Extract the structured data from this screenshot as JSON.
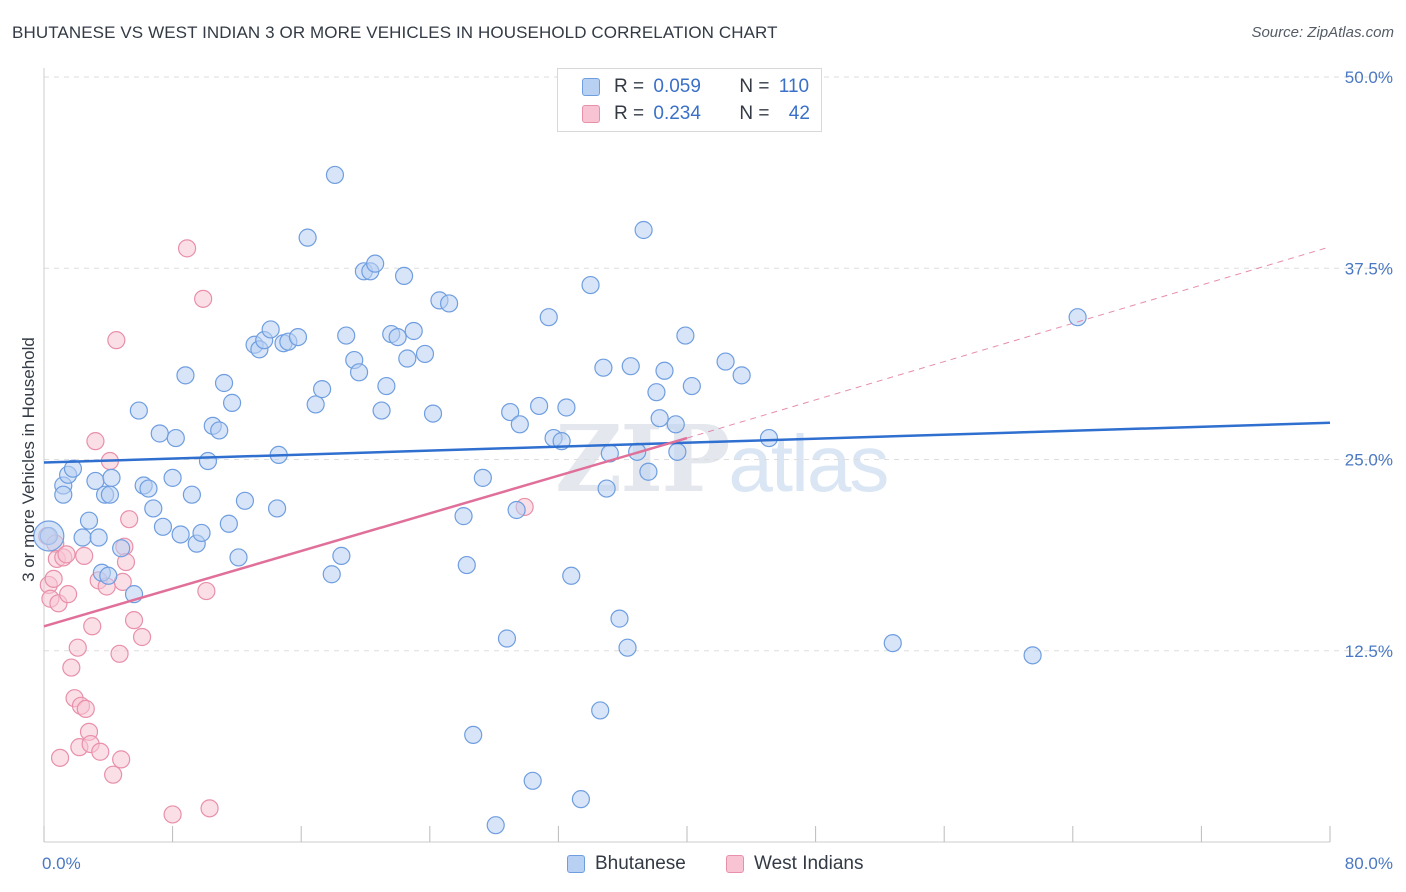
{
  "title": "BHUTANESE VS WEST INDIAN 3 OR MORE VEHICLES IN HOUSEHOLD CORRELATION CHART",
  "source": "Source: ZipAtlas.com",
  "watermark": {
    "zip": "ZIP",
    "atlas": "atlas"
  },
  "colors": {
    "blue_fill": "#b8d0f2",
    "blue_stroke": "#6f9ee0",
    "blue_line": "#2f6fcf",
    "pink_fill": "#f8c4d4",
    "pink_stroke": "#e890aa",
    "pink_line": "#e0709a",
    "tick": "#4a78c2",
    "grid": "#dddddd"
  },
  "legend": {
    "rows": [
      {
        "r_label": "R =",
        "r_value": "0.059",
        "n_label": "N =",
        "n_value": "110",
        "color": "#b8d0f2"
      },
      {
        "r_label": "R =",
        "r_value": "0.234",
        "n_label": "N =",
        "n_value": "42",
        "color": "#f8c4d4"
      }
    ]
  },
  "chart_data": {
    "type": "scatter",
    "title": "BHUTANESE VS WEST INDIAN 3 OR MORE VEHICLES IN HOUSEHOLD CORRELATION CHART",
    "xlabel": "",
    "ylabel": "3 or more Vehicles in Household",
    "xlim": [
      0,
      80
    ],
    "ylim": [
      0,
      50
    ],
    "x_tick_labels": [
      "0.0%",
      "80.0%"
    ],
    "y_ticks": [
      12.5,
      25.0,
      37.5,
      50.0
    ],
    "y_tick_labels": [
      "12.5%",
      "25.0%",
      "37.5%",
      "50.0%"
    ],
    "grid": true,
    "legend_position": "bottom",
    "series": [
      {
        "name": "Bhutanese",
        "color": "#b8d0f2",
        "trend": {
          "x": [
            0,
            80
          ],
          "y": [
            24.8,
            27.4
          ]
        },
        "points": [
          [
            0.3,
            20.0
          ],
          [
            1.2,
            23.3
          ],
          [
            1.2,
            22.7
          ],
          [
            1.5,
            24.0
          ],
          [
            1.8,
            24.4
          ],
          [
            2.4,
            19.9
          ],
          [
            2.8,
            21.0
          ],
          [
            3.2,
            23.6
          ],
          [
            3.4,
            19.9
          ],
          [
            3.6,
            17.6
          ],
          [
            3.8,
            22.7
          ],
          [
            4.0,
            17.4
          ],
          [
            4.1,
            22.7
          ],
          [
            4.2,
            23.8
          ],
          [
            4.8,
            19.2
          ],
          [
            5.6,
            16.2
          ],
          [
            5.9,
            28.2
          ],
          [
            6.2,
            23.3
          ],
          [
            6.5,
            23.1
          ],
          [
            6.8,
            21.8
          ],
          [
            7.2,
            26.7
          ],
          [
            7.4,
            20.6
          ],
          [
            8.0,
            23.8
          ],
          [
            8.2,
            26.4
          ],
          [
            8.5,
            20.1
          ],
          [
            8.8,
            30.5
          ],
          [
            9.2,
            22.7
          ],
          [
            9.5,
            19.5
          ],
          [
            9.8,
            20.2
          ],
          [
            10.2,
            24.9
          ],
          [
            10.5,
            27.2
          ],
          [
            10.9,
            26.9
          ],
          [
            11.2,
            30.0
          ],
          [
            11.5,
            20.8
          ],
          [
            11.7,
            28.7
          ],
          [
            12.1,
            18.6
          ],
          [
            12.5,
            22.3
          ],
          [
            13.1,
            32.5
          ],
          [
            13.4,
            32.2
          ],
          [
            13.7,
            32.8
          ],
          [
            14.1,
            33.5
          ],
          [
            14.5,
            21.8
          ],
          [
            14.6,
            25.3
          ],
          [
            14.9,
            32.6
          ],
          [
            15.2,
            32.7
          ],
          [
            15.8,
            33.0
          ],
          [
            16.4,
            39.5
          ],
          [
            16.9,
            28.6
          ],
          [
            17.3,
            29.6
          ],
          [
            17.9,
            17.5
          ],
          [
            18.1,
            43.6
          ],
          [
            18.5,
            18.7
          ],
          [
            18.8,
            33.1
          ],
          [
            19.3,
            31.5
          ],
          [
            19.6,
            30.7
          ],
          [
            19.9,
            37.3
          ],
          [
            20.3,
            37.3
          ],
          [
            20.6,
            37.8
          ],
          [
            21.0,
            28.2
          ],
          [
            21.3,
            29.8
          ],
          [
            21.6,
            33.2
          ],
          [
            22.0,
            33.0
          ],
          [
            22.4,
            37.0
          ],
          [
            22.6,
            31.6
          ],
          [
            23.0,
            33.4
          ],
          [
            23.7,
            31.9
          ],
          [
            24.2,
            28.0
          ],
          [
            24.6,
            35.4
          ],
          [
            25.2,
            35.2
          ],
          [
            26.1,
            21.3
          ],
          [
            26.3,
            18.1
          ],
          [
            26.7,
            7.0
          ],
          [
            27.3,
            23.8
          ],
          [
            28.1,
            1.1
          ],
          [
            28.8,
            13.3
          ],
          [
            29.0,
            28.1
          ],
          [
            29.4,
            21.7
          ],
          [
            29.6,
            27.3
          ],
          [
            30.4,
            4.0
          ],
          [
            30.8,
            28.5
          ],
          [
            31.4,
            34.3
          ],
          [
            31.7,
            26.4
          ],
          [
            32.2,
            26.2
          ],
          [
            32.5,
            28.4
          ],
          [
            32.8,
            17.4
          ],
          [
            33.4,
            2.8
          ],
          [
            34.0,
            36.4
          ],
          [
            34.6,
            8.6
          ],
          [
            34.8,
            31.0
          ],
          [
            35.0,
            23.1
          ],
          [
            35.2,
            25.4
          ],
          [
            35.8,
            14.6
          ],
          [
            36.3,
            12.7
          ],
          [
            36.5,
            31.1
          ],
          [
            36.9,
            25.5
          ],
          [
            37.3,
            40.0
          ],
          [
            37.6,
            24.2
          ],
          [
            38.1,
            29.4
          ],
          [
            38.3,
            27.7
          ],
          [
            38.6,
            30.8
          ],
          [
            39.3,
            27.3
          ],
          [
            39.4,
            25.5
          ],
          [
            39.9,
            33.1
          ],
          [
            40.3,
            29.8
          ],
          [
            42.4,
            31.4
          ],
          [
            43.4,
            30.5
          ],
          [
            45.1,
            26.4
          ],
          [
            52.8,
            13.0
          ],
          [
            61.5,
            12.2
          ],
          [
            64.3,
            34.3
          ]
        ]
      },
      {
        "name": "West Indians",
        "color": "#f8c4d4",
        "trend": {
          "x": [
            0,
            40
          ],
          "y": [
            14.1,
            26.4
          ]
        },
        "trend_extension": {
          "x": [
            40,
            80
          ],
          "y": [
            26.4,
            38.9
          ]
        },
        "points": [
          [
            0.2,
            20.0
          ],
          [
            0.3,
            16.8
          ],
          [
            0.4,
            15.9
          ],
          [
            0.6,
            17.2
          ],
          [
            0.7,
            19.5
          ],
          [
            0.8,
            18.5
          ],
          [
            0.9,
            15.6
          ],
          [
            1.0,
            5.5
          ],
          [
            1.2,
            18.6
          ],
          [
            1.4,
            18.8
          ],
          [
            1.5,
            16.2
          ],
          [
            1.7,
            11.4
          ],
          [
            1.9,
            9.4
          ],
          [
            2.1,
            12.7
          ],
          [
            2.2,
            6.2
          ],
          [
            2.3,
            8.9
          ],
          [
            2.5,
            18.7
          ],
          [
            2.6,
            8.7
          ],
          [
            2.8,
            7.2
          ],
          [
            2.9,
            6.4
          ],
          [
            3.0,
            14.1
          ],
          [
            3.2,
            26.2
          ],
          [
            3.4,
            17.1
          ],
          [
            3.5,
            5.9
          ],
          [
            3.9,
            16.7
          ],
          [
            4.1,
            24.9
          ],
          [
            4.3,
            4.4
          ],
          [
            4.5,
            32.8
          ],
          [
            4.7,
            12.3
          ],
          [
            4.8,
            5.4
          ],
          [
            4.9,
            17.0
          ],
          [
            5.0,
            19.3
          ],
          [
            5.1,
            18.3
          ],
          [
            5.3,
            21.1
          ],
          [
            5.6,
            14.5
          ],
          [
            6.1,
            13.4
          ],
          [
            8.0,
            1.8
          ],
          [
            8.9,
            38.8
          ],
          [
            9.9,
            35.5
          ],
          [
            10.1,
            16.4
          ],
          [
            10.3,
            2.2
          ],
          [
            29.9,
            21.9
          ]
        ]
      }
    ]
  },
  "bottom_legend": [
    {
      "label": "Bhutanese",
      "color": "#b8d0f2"
    },
    {
      "label": "West Indians",
      "color": "#f8c4d4"
    }
  ]
}
